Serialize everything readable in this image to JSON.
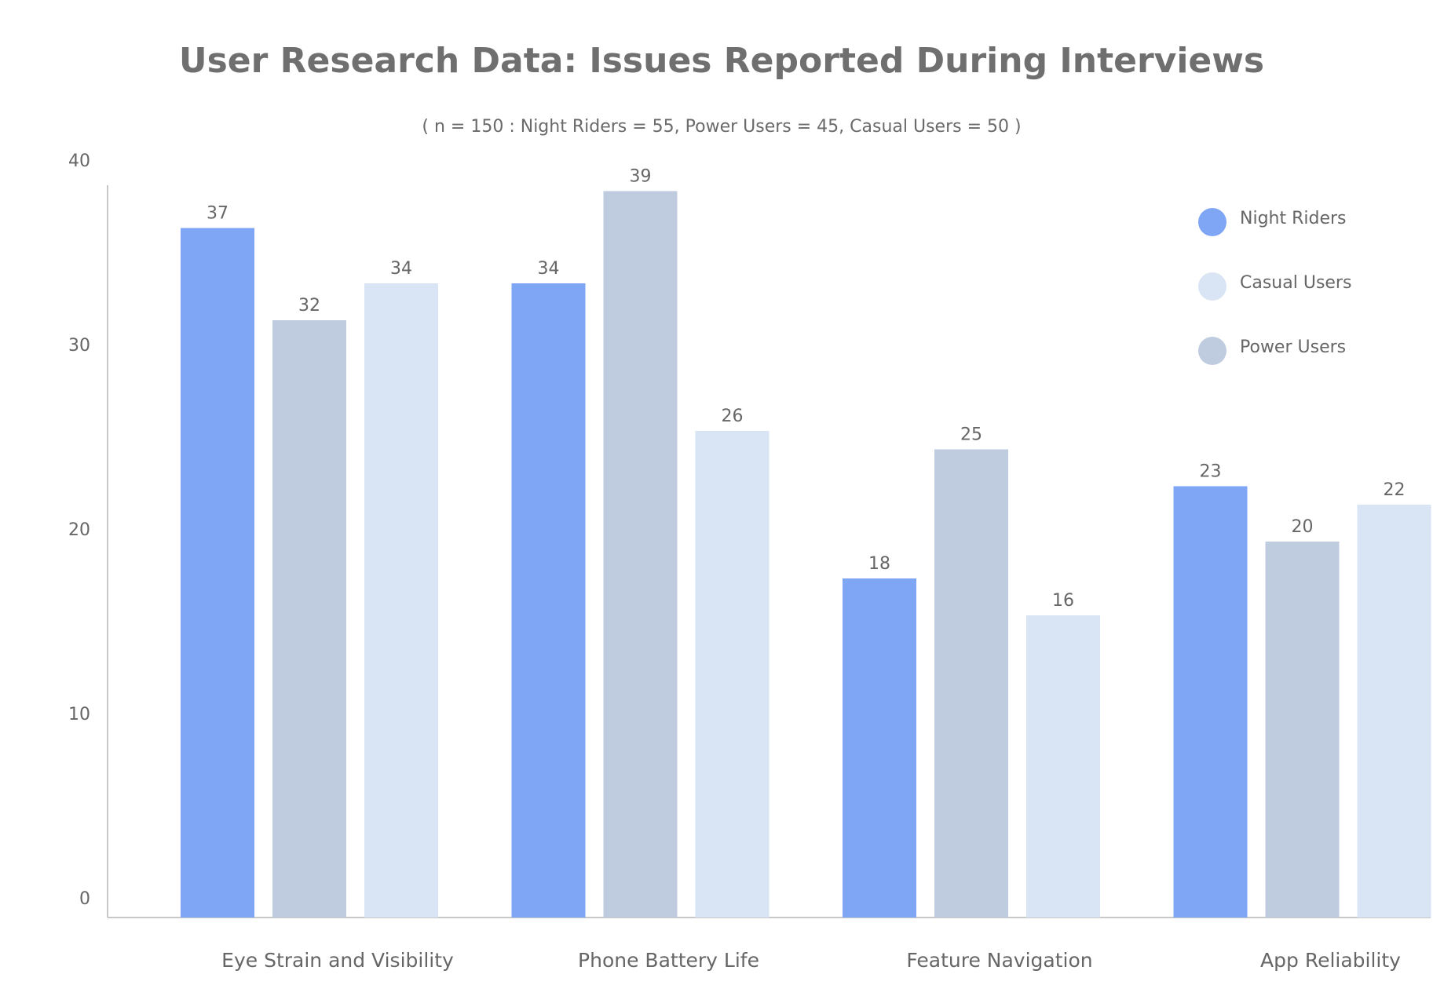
{
  "chart_data": {
    "type": "bar",
    "title": "User Research Data: Issues Reported During Interviews",
    "subtitle": "( n  = 150 : Night Riders = 55,  Power Users = 45,  Casual Users = 50 )",
    "categories": [
      "Eye Strain and Visibility",
      "Phone Battery Life",
      "Feature Navigation",
      "App Reliability"
    ],
    "series": [
      {
        "name": "Night Riders",
        "color": "#7fa6f4",
        "values": [
          37,
          34,
          18,
          23
        ]
      },
      {
        "name": "Power Users",
        "color": "#bfcbdf",
        "values": [
          32,
          39,
          25,
          20
        ]
      },
      {
        "name": "Casual Users",
        "color": "#d9e4f5",
        "values": [
          34,
          26,
          16,
          22
        ]
      }
    ],
    "bar_order": [
      "Night Riders",
      "Power Users",
      "Casual Users"
    ],
    "legend_order": [
      "Night Riders",
      "Casual Users",
      "Power Users"
    ],
    "legend_position": "top-right",
    "ylim": [
      0,
      40
    ],
    "yticks": [
      0,
      10,
      20,
      30,
      40
    ],
    "xlabel": "",
    "ylabel": "",
    "grid": false
  }
}
